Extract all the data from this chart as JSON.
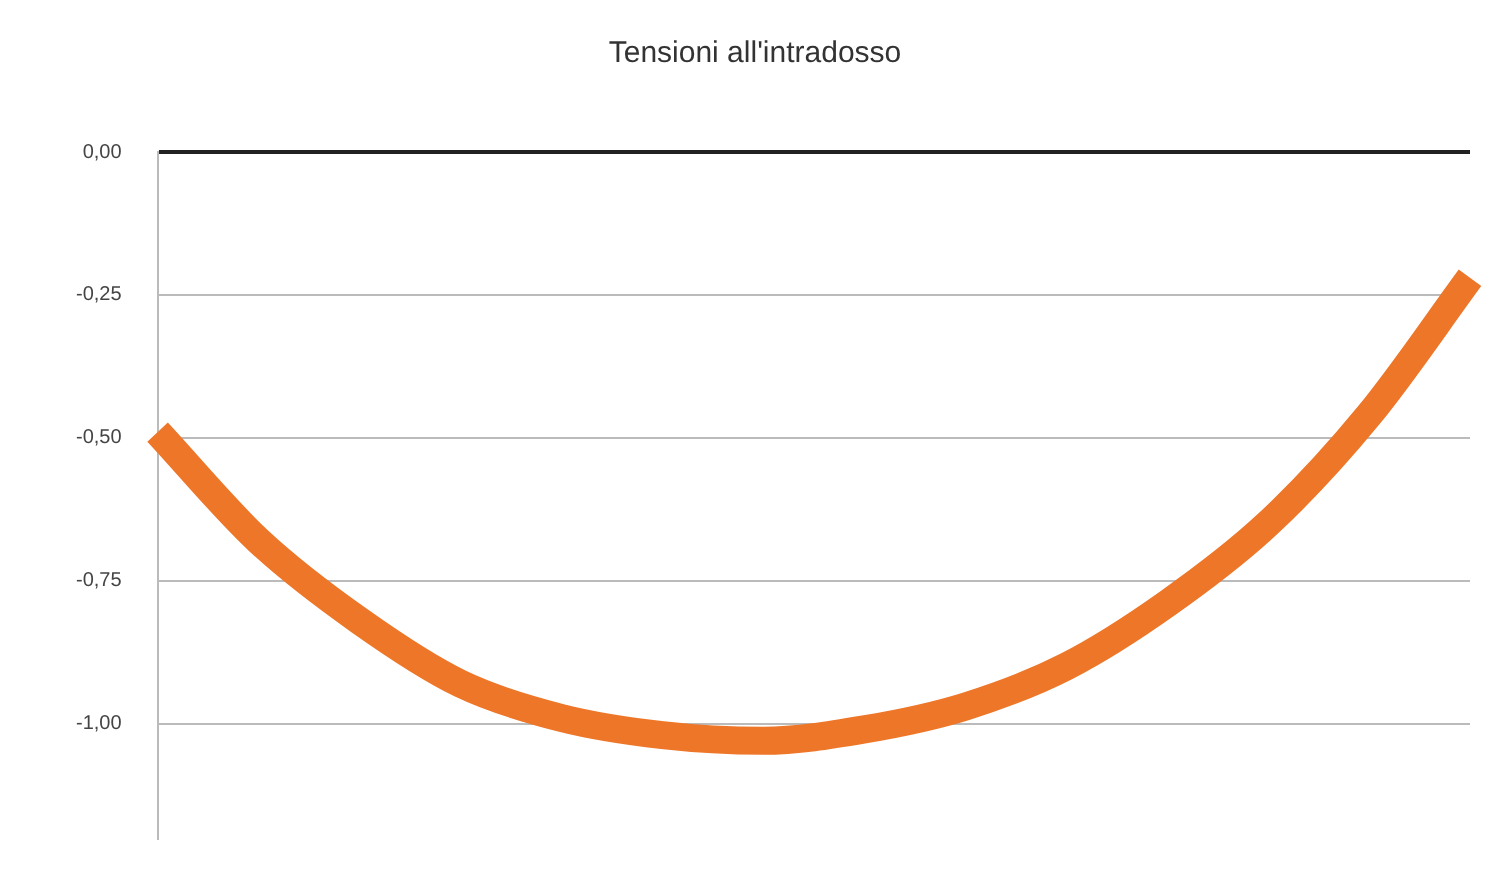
{
  "chart_data": {
    "type": "line",
    "title": "Tensioni all'intradosso",
    "categories": [
      null,
      null,
      null,
      null,
      null,
      null,
      null,
      null,
      null,
      null,
      null,
      null,
      null,
      null
    ],
    "series": [
      {
        "color": "#ed7628",
        "values": [
          -0.49,
          -0.68,
          -0.82,
          -0.93,
          -0.99,
          -1.02,
          -1.03,
          -1.01,
          -0.97,
          -0.9,
          -0.79,
          -0.65,
          -0.46,
          -0.22
        ]
      }
    ],
    "ylim": [
      -1.2,
      0
    ],
    "yticks": [
      {
        "value": 0,
        "label": "0,00"
      },
      {
        "value": -0.25,
        "label": "-0,25"
      },
      {
        "value": -0.5,
        "label": "-0,50"
      },
      {
        "value": -0.75,
        "label": "-0,75"
      },
      {
        "value": -1,
        "label": "-1,00"
      }
    ],
    "grid": "y",
    "tick_labels": "y",
    "marker": "none",
    "line_style": "solid",
    "legend": false
  }
}
